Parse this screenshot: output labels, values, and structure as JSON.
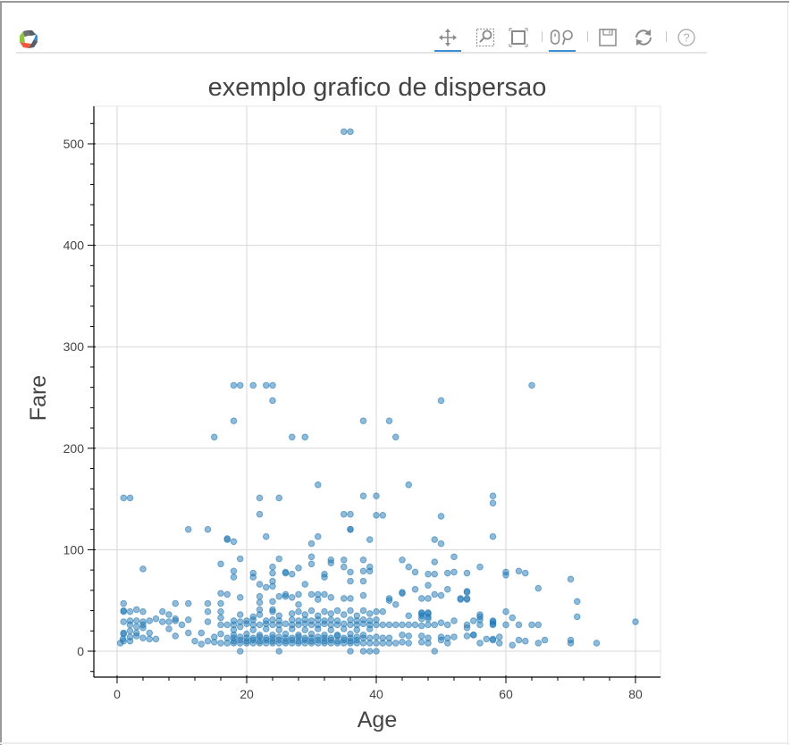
{
  "toolbar": {
    "logo": "bokeh-logo-icon",
    "tools": [
      {
        "name": "pan",
        "icon": "pan-move-icon",
        "active": true
      },
      {
        "name": "box_zoom",
        "icon": "box-zoom-icon",
        "active": false
      },
      {
        "name": "wheel_zoom_box",
        "icon": "zoom-extent-icon",
        "active": false
      },
      {
        "name": "wheel_zoom",
        "icon": "wheel-zoom-icon",
        "active": true
      },
      {
        "name": "save",
        "icon": "save-icon",
        "active": false
      },
      {
        "name": "reset",
        "icon": "reset-icon",
        "active": false
      },
      {
        "name": "help",
        "icon": "help-icon",
        "active": false
      }
    ],
    "active_color": "#3b8fd3"
  },
  "colors": {
    "marker": "#1f77b4",
    "grid": "#d7d7d7",
    "axis": "#000000",
    "text": "#444444"
  },
  "chart_data": {
    "type": "scatter",
    "title": "exemplo grafico de dispersao",
    "xlabel": "Age",
    "ylabel": "Fare",
    "xlim": [
      -3.5,
      84
    ],
    "ylim": [
      -25,
      537
    ],
    "xticks": [
      0,
      20,
      40,
      60,
      80
    ],
    "yticks": [
      0,
      100,
      200,
      300,
      400,
      500
    ],
    "grid": true,
    "legend": null,
    "marker": {
      "shape": "circle",
      "color": "#1f77b4",
      "alpha": 0.5,
      "size": 7
    },
    "points": [
      [
        35,
        512
      ],
      [
        36,
        512
      ],
      [
        18,
        262
      ],
      [
        19,
        262
      ],
      [
        21,
        262
      ],
      [
        23,
        262
      ],
      [
        24,
        262
      ],
      [
        64,
        262
      ],
      [
        24,
        247
      ],
      [
        50,
        247
      ],
      [
        18,
        227
      ],
      [
        38,
        227
      ],
      [
        42,
        227
      ],
      [
        15,
        211
      ],
      [
        27,
        211
      ],
      [
        29,
        211
      ],
      [
        43,
        211
      ],
      [
        31,
        164
      ],
      [
        45,
        164
      ],
      [
        1,
        151
      ],
      [
        2,
        151
      ],
      [
        22,
        151
      ],
      [
        25,
        151
      ],
      [
        38,
        153
      ],
      [
        40,
        153
      ],
      [
        58,
        153
      ],
      [
        58,
        146
      ],
      [
        22,
        135
      ],
      [
        35,
        135
      ],
      [
        36,
        135
      ],
      [
        40,
        134
      ],
      [
        41,
        134
      ],
      [
        50,
        133
      ],
      [
        11,
        120
      ],
      [
        14,
        120
      ],
      [
        36,
        120
      ],
      [
        36,
        120
      ],
      [
        17,
        110
      ],
      [
        17,
        111
      ],
      [
        18,
        108
      ],
      [
        23,
        113
      ],
      [
        30,
        106
      ],
      [
        31,
        113
      ],
      [
        39,
        110
      ],
      [
        49,
        110
      ],
      [
        50,
        106
      ],
      [
        58,
        113
      ],
      [
        4,
        81
      ],
      [
        16,
        86
      ],
      [
        19,
        91
      ],
      [
        18,
        79
      ],
      [
        18,
        73
      ],
      [
        21,
        77
      ],
      [
        21,
        73
      ],
      [
        22,
        66
      ],
      [
        23,
        63
      ],
      [
        24,
        83
      ],
      [
        24,
        77
      ],
      [
        24,
        69
      ],
      [
        24,
        64
      ],
      [
        25,
        91
      ],
      [
        26,
        78
      ],
      [
        26,
        77
      ],
      [
        27,
        76
      ],
      [
        28,
        82
      ],
      [
        29,
        66
      ],
      [
        30,
        93
      ],
      [
        30,
        86
      ],
      [
        32,
        76
      ],
      [
        32,
        73
      ],
      [
        33,
        90
      ],
      [
        33,
        87
      ],
      [
        35,
        90
      ],
      [
        35,
        83
      ],
      [
        36,
        78
      ],
      [
        36,
        69
      ],
      [
        38,
        90
      ],
      [
        38,
        79
      ],
      [
        38,
        69
      ],
      [
        39,
        83
      ],
      [
        39,
        79
      ],
      [
        44,
        90
      ],
      [
        45,
        83
      ],
      [
        46,
        78
      ],
      [
        48,
        76
      ],
      [
        49,
        76
      ],
      [
        49,
        88
      ],
      [
        51,
        77
      ],
      [
        52,
        93
      ],
      [
        52,
        78
      ],
      [
        54,
        77
      ],
      [
        56,
        83
      ],
      [
        60,
        78
      ],
      [
        60,
        75
      ],
      [
        62,
        79
      ],
      [
        63,
        77
      ],
      [
        65,
        62
      ],
      [
        70,
        71
      ],
      [
        71,
        49
      ],
      [
        71,
        34
      ],
      [
        80,
        29
      ],
      [
        16,
        57
      ],
      [
        17,
        56
      ],
      [
        19,
        53
      ],
      [
        22,
        54
      ],
      [
        22,
        48
      ],
      [
        22,
        41
      ],
      [
        24,
        49
      ],
      [
        24,
        41
      ],
      [
        25,
        54
      ],
      [
        26,
        54
      ],
      [
        26,
        56
      ],
      [
        27,
        53
      ],
      [
        28,
        56
      ],
      [
        28,
        46
      ],
      [
        30,
        56
      ],
      [
        31,
        56
      ],
      [
        31,
        51
      ],
      [
        32,
        56
      ],
      [
        33,
        53
      ],
      [
        35,
        52
      ],
      [
        36,
        52
      ],
      [
        38,
        55
      ],
      [
        42,
        52
      ],
      [
        42,
        50
      ],
      [
        43,
        46
      ],
      [
        44,
        57
      ],
      [
        44,
        58
      ],
      [
        46,
        61
      ],
      [
        47,
        52
      ],
      [
        48,
        52
      ],
      [
        48,
        65
      ],
      [
        49,
        56
      ],
      [
        50,
        55
      ],
      [
        51,
        61
      ],
      [
        53,
        51
      ],
      [
        53,
        52
      ],
      [
        54,
        51
      ],
      [
        54,
        52
      ],
      [
        54,
        58
      ],
      [
        54,
        59
      ],
      [
        1,
        47
      ],
      [
        1,
        40
      ],
      [
        1,
        39
      ],
      [
        2,
        39
      ],
      [
        3,
        41
      ],
      [
        4,
        39
      ],
      [
        1,
        29
      ],
      [
        2,
        30
      ],
      [
        2,
        26
      ],
      [
        3,
        30
      ],
      [
        3,
        24
      ],
      [
        4,
        29
      ],
      [
        4,
        26
      ],
      [
        5,
        30
      ],
      [
        6,
        32
      ],
      [
        1,
        18
      ],
      [
        1,
        17
      ],
      [
        2,
        20
      ],
      [
        3,
        18
      ],
      [
        3,
        15
      ],
      [
        4,
        23
      ],
      [
        4,
        13
      ],
      [
        5,
        18
      ],
      [
        5,
        12
      ],
      [
        6,
        12
      ],
      [
        0.5,
        8
      ],
      [
        1,
        10
      ],
      [
        2,
        10
      ],
      [
        0.9,
        12
      ],
      [
        2,
        14
      ],
      [
        7,
        39
      ],
      [
        8,
        36
      ],
      [
        7,
        29
      ],
      [
        8,
        29
      ],
      [
        8,
        22
      ],
      [
        9,
        32
      ],
      [
        9,
        30
      ],
      [
        9,
        15
      ],
      [
        9,
        47
      ],
      [
        11,
        47
      ],
      [
        10,
        26
      ],
      [
        11,
        31
      ],
      [
        11,
        18
      ],
      [
        12,
        10
      ],
      [
        13,
        18
      ],
      [
        13,
        7
      ],
      [
        14,
        47
      ],
      [
        14,
        39
      ],
      [
        14,
        29
      ],
      [
        14,
        10
      ],
      [
        15,
        14
      ],
      [
        16,
        47
      ],
      [
        16,
        39
      ],
      [
        16,
        33
      ],
      [
        16,
        26
      ],
      [
        16,
        17
      ],
      [
        19,
        36
      ],
      [
        19,
        29
      ],
      [
        19,
        24
      ],
      [
        19,
        0
      ],
      [
        40,
        39
      ],
      [
        41,
        39
      ],
      [
        45,
        35
      ],
      [
        47,
        38
      ],
      [
        48,
        38
      ],
      [
        47,
        35
      ],
      [
        48,
        34
      ],
      [
        47,
        37
      ],
      [
        47,
        32
      ],
      [
        48,
        37
      ],
      [
        48,
        32
      ],
      [
        43,
        26
      ],
      [
        44,
        26
      ],
      [
        45,
        26
      ],
      [
        46,
        26
      ],
      [
        47,
        25
      ],
      [
        48,
        26
      ],
      [
        49,
        26
      ],
      [
        50,
        28
      ],
      [
        51,
        26
      ],
      [
        52,
        30
      ],
      [
        54,
        26
      ],
      [
        54,
        23
      ],
      [
        55,
        30
      ],
      [
        56,
        34
      ],
      [
        56,
        26
      ],
      [
        56,
        36
      ],
      [
        56,
        31
      ],
      [
        58,
        30
      ],
      [
        58,
        27
      ],
      [
        58,
        29
      ],
      [
        58,
        26
      ],
      [
        60,
        39
      ],
      [
        60,
        26
      ],
      [
        61,
        33
      ],
      [
        62,
        26
      ],
      [
        64,
        26
      ],
      [
        65,
        26
      ],
      [
        44,
        16
      ],
      [
        45,
        15
      ],
      [
        47,
        15
      ],
      [
        48,
        13
      ],
      [
        50,
        14
      ],
      [
        51,
        13
      ],
      [
        52,
        14
      ],
      [
        43,
        8
      ],
      [
        44,
        9
      ],
      [
        45,
        8
      ],
      [
        47,
        9
      ],
      [
        48,
        8
      ],
      [
        50,
        11
      ],
      [
        51,
        8
      ],
      [
        54,
        15
      ],
      [
        55,
        16
      ],
      [
        56,
        8
      ],
      [
        57,
        12
      ],
      [
        59,
        14
      ],
      [
        59,
        8
      ],
      [
        55,
        16
      ],
      [
        58,
        12
      ],
      [
        58,
        11
      ],
      [
        61,
        6
      ],
      [
        62,
        11
      ],
      [
        63,
        10
      ],
      [
        65,
        8
      ],
      [
        66,
        11
      ],
      [
        70,
        11
      ],
      [
        70,
        8
      ],
      [
        74,
        8
      ],
      [
        36,
        0
      ],
      [
        38,
        0
      ],
      [
        39,
        0
      ],
      [
        40,
        0
      ],
      [
        49,
        0
      ],
      [
        25,
        0
      ],
      [
        17,
        8
      ],
      [
        18,
        8
      ],
      [
        19,
        8
      ],
      [
        20,
        8
      ],
      [
        21,
        8
      ],
      [
        22,
        8
      ],
      [
        23,
        8
      ],
      [
        24,
        8
      ],
      [
        25,
        8
      ],
      [
        26,
        8
      ],
      [
        27,
        8
      ],
      [
        28,
        8
      ],
      [
        29,
        8
      ],
      [
        30,
        8
      ],
      [
        31,
        8
      ],
      [
        32,
        8
      ],
      [
        33,
        8
      ],
      [
        34,
        8
      ],
      [
        35,
        8
      ],
      [
        36,
        8
      ],
      [
        37,
        8
      ],
      [
        38,
        8
      ],
      [
        39,
        8
      ],
      [
        40,
        8
      ],
      [
        41,
        8
      ],
      [
        42,
        8
      ],
      [
        16,
        8
      ],
      [
        15,
        9
      ],
      [
        18,
        10
      ],
      [
        19,
        11
      ],
      [
        20,
        10
      ],
      [
        21,
        11
      ],
      [
        22,
        10
      ],
      [
        23,
        11
      ],
      [
        24,
        10
      ],
      [
        25,
        11
      ],
      [
        26,
        10
      ],
      [
        27,
        11
      ],
      [
        28,
        10
      ],
      [
        29,
        11
      ],
      [
        30,
        10
      ],
      [
        31,
        11
      ],
      [
        32,
        10
      ],
      [
        33,
        11
      ],
      [
        34,
        10
      ],
      [
        35,
        11
      ],
      [
        36,
        10
      ],
      [
        37,
        11
      ],
      [
        17,
        13
      ],
      [
        18,
        13
      ],
      [
        19,
        14
      ],
      [
        20,
        13
      ],
      [
        21,
        13
      ],
      [
        22,
        14
      ],
      [
        23,
        13
      ],
      [
        24,
        13
      ],
      [
        25,
        14
      ],
      [
        26,
        13
      ],
      [
        27,
        13
      ],
      [
        28,
        14
      ],
      [
        29,
        13
      ],
      [
        30,
        13
      ],
      [
        31,
        14
      ],
      [
        32,
        13
      ],
      [
        33,
        13
      ],
      [
        34,
        15
      ],
      [
        35,
        13
      ],
      [
        36,
        13
      ],
      [
        37,
        14
      ],
      [
        38,
        13
      ],
      [
        39,
        13
      ],
      [
        40,
        14
      ],
      [
        41,
        13
      ],
      [
        42,
        13
      ],
      [
        18,
        16
      ],
      [
        20,
        17
      ],
      [
        22,
        16
      ],
      [
        24,
        16
      ],
      [
        26,
        17
      ],
      [
        28,
        16
      ],
      [
        30,
        17
      ],
      [
        32,
        16
      ],
      [
        34,
        16
      ],
      [
        36,
        17
      ],
      [
        38,
        16
      ],
      [
        17,
        26
      ],
      [
        18,
        26
      ],
      [
        20,
        27
      ],
      [
        21,
        26
      ],
      [
        22,
        26
      ],
      [
        23,
        27
      ],
      [
        24,
        26
      ],
      [
        25,
        26
      ],
      [
        26,
        27
      ],
      [
        27,
        26
      ],
      [
        28,
        26
      ],
      [
        29,
        27
      ],
      [
        30,
        26
      ],
      [
        31,
        26
      ],
      [
        32,
        27
      ],
      [
        33,
        26
      ],
      [
        34,
        26
      ],
      [
        35,
        27
      ],
      [
        36,
        26
      ],
      [
        37,
        26
      ],
      [
        38,
        27
      ],
      [
        39,
        26
      ],
      [
        40,
        26
      ],
      [
        41,
        26
      ],
      [
        42,
        26
      ],
      [
        18,
        30
      ],
      [
        20,
        30
      ],
      [
        21,
        31
      ],
      [
        23,
        30
      ],
      [
        24,
        31
      ],
      [
        25,
        30
      ],
      [
        27,
        31
      ],
      [
        28,
        30
      ],
      [
        29,
        31
      ],
      [
        30,
        30
      ],
      [
        31,
        31
      ],
      [
        32,
        30
      ],
      [
        33,
        31
      ],
      [
        34,
        30
      ],
      [
        36,
        31
      ],
      [
        37,
        30
      ],
      [
        38,
        31
      ],
      [
        39,
        30
      ],
      [
        40,
        31
      ],
      [
        18,
        21
      ],
      [
        21,
        21
      ],
      [
        23,
        22
      ],
      [
        25,
        21
      ],
      [
        27,
        22
      ],
      [
        29,
        21
      ],
      [
        31,
        22
      ],
      [
        33,
        21
      ],
      [
        35,
        22
      ],
      [
        37,
        21
      ],
      [
        39,
        22
      ],
      [
        22,
        36
      ],
      [
        25,
        35
      ],
      [
        27,
        37
      ],
      [
        29,
        36
      ],
      [
        31,
        35
      ],
      [
        33,
        37
      ],
      [
        35,
        36
      ],
      [
        37,
        35
      ],
      [
        39,
        37
      ],
      [
        21,
        34
      ],
      [
        24,
        39
      ],
      [
        28,
        39
      ],
      [
        30,
        40
      ],
      [
        32,
        39
      ],
      [
        34,
        40
      ],
      [
        36,
        40
      ],
      [
        38,
        40
      ]
    ]
  }
}
